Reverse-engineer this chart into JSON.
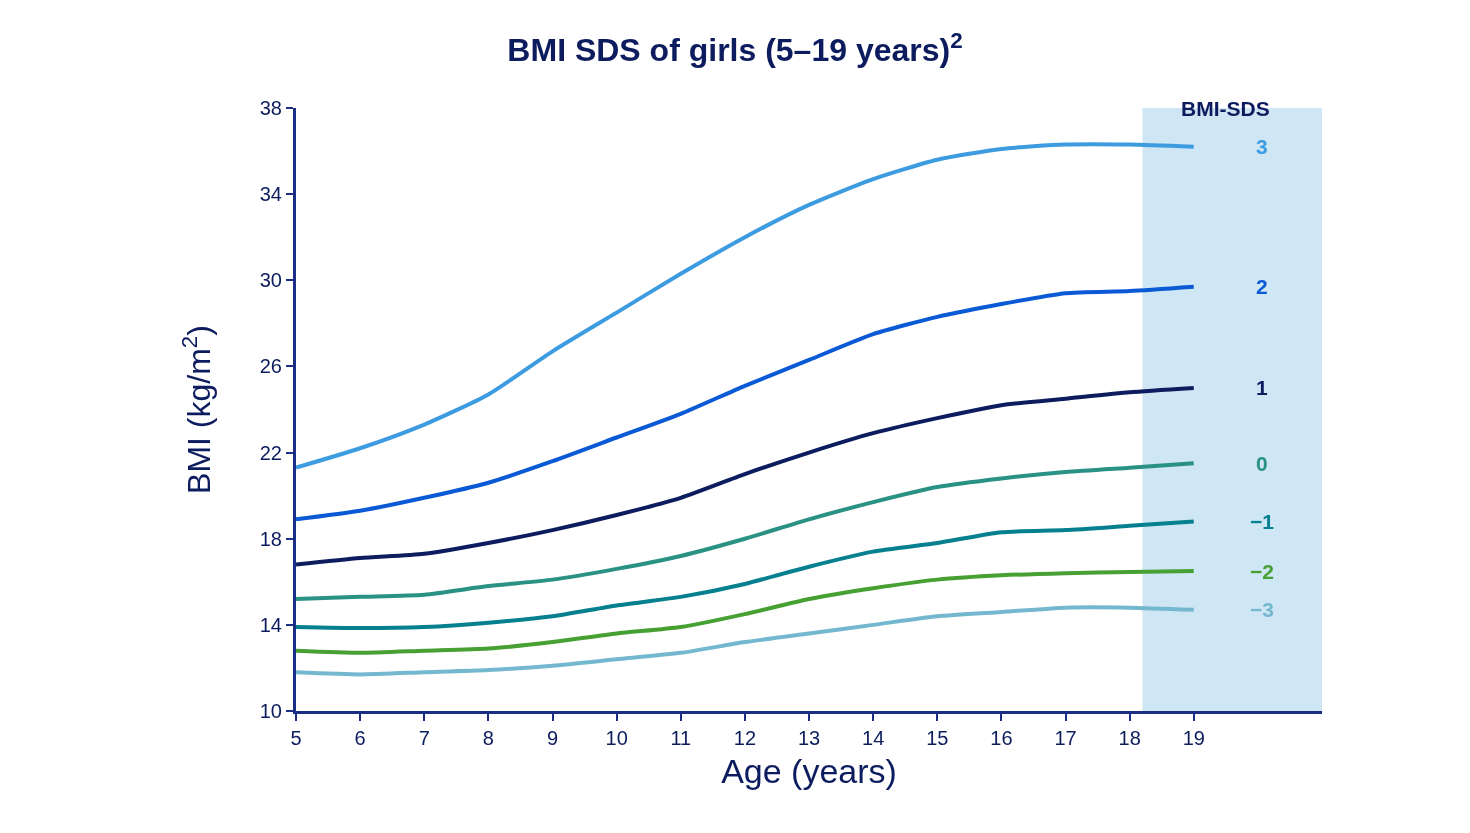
{
  "chart_data": {
    "type": "line",
    "title": "BMI SDS of girls (5–19 years)$^{2}$",
    "xlabel": "Age (years)",
    "ylabel": "BMI (kg/m$^{2}$)",
    "legend_title": "BMI-SDS",
    "x": [
      5,
      6,
      7,
      8,
      9,
      10,
      11,
      12,
      13,
      14,
      15,
      16,
      17,
      18,
      19
    ],
    "series": [
      {
        "name": "3",
        "color": "#3d9be0",
        "values": [
          21.3,
          22.2,
          23.3,
          24.7,
          26.7,
          28.5,
          30.3,
          32.0,
          33.5,
          34.7,
          35.6,
          36.1,
          36.3,
          36.3,
          36.2
        ]
      },
      {
        "name": "2",
        "color": "#0a5ad6",
        "values": [
          18.9,
          19.3,
          19.9,
          20.6,
          21.6,
          22.7,
          23.8,
          25.1,
          26.3,
          27.5,
          28.3,
          28.9,
          29.4,
          29.5,
          29.7
        ]
      },
      {
        "name": "1",
        "color": "#0c1c5e",
        "values": [
          16.8,
          17.1,
          17.3,
          17.8,
          18.4,
          19.1,
          19.9,
          21.0,
          22.0,
          22.9,
          23.6,
          24.2,
          24.5,
          24.8,
          25.0
        ]
      },
      {
        "name": "0",
        "color": "#2a9185",
        "values": [
          15.2,
          15.3,
          15.4,
          15.8,
          16.1,
          16.6,
          17.2,
          18.0,
          18.9,
          19.7,
          20.4,
          20.8,
          21.1,
          21.3,
          21.5
        ]
      },
      {
        "name": "−1",
        "color": "#067f8f",
        "values": [
          13.9,
          13.85,
          13.9,
          14.1,
          14.4,
          14.9,
          15.3,
          15.9,
          16.7,
          17.4,
          17.8,
          18.3,
          18.4,
          18.6,
          18.8
        ]
      },
      {
        "name": "−2",
        "color": "#46a032",
        "values": [
          12.8,
          12.7,
          12.8,
          12.9,
          13.2,
          13.6,
          13.9,
          14.5,
          15.2,
          15.7,
          16.1,
          16.3,
          16.4,
          16.45,
          16.5
        ]
      },
      {
        "name": "−3",
        "color": "#74b8cf",
        "values": [
          11.8,
          11.7,
          11.8,
          11.9,
          12.1,
          12.4,
          12.7,
          13.2,
          13.6,
          14.0,
          14.4,
          14.6,
          14.8,
          14.8,
          14.7
        ]
      }
    ],
    "bands": [
      {
        "axis": "x",
        "from": 18.2,
        "to": 21,
        "color": "#cfe6f4"
      }
    ],
    "xlim": [
      5,
      21
    ],
    "xticks": [
      5,
      6,
      7,
      8,
      9,
      10,
      11,
      12,
      13,
      14,
      15,
      16,
      17,
      18,
      19
    ],
    "ylim": [
      10,
      38
    ],
    "yticks": [
      10,
      14,
      18,
      22,
      26,
      30,
      34,
      38
    ],
    "grid": false,
    "legend": false,
    "marker": "none",
    "line_style": "solid"
  }
}
